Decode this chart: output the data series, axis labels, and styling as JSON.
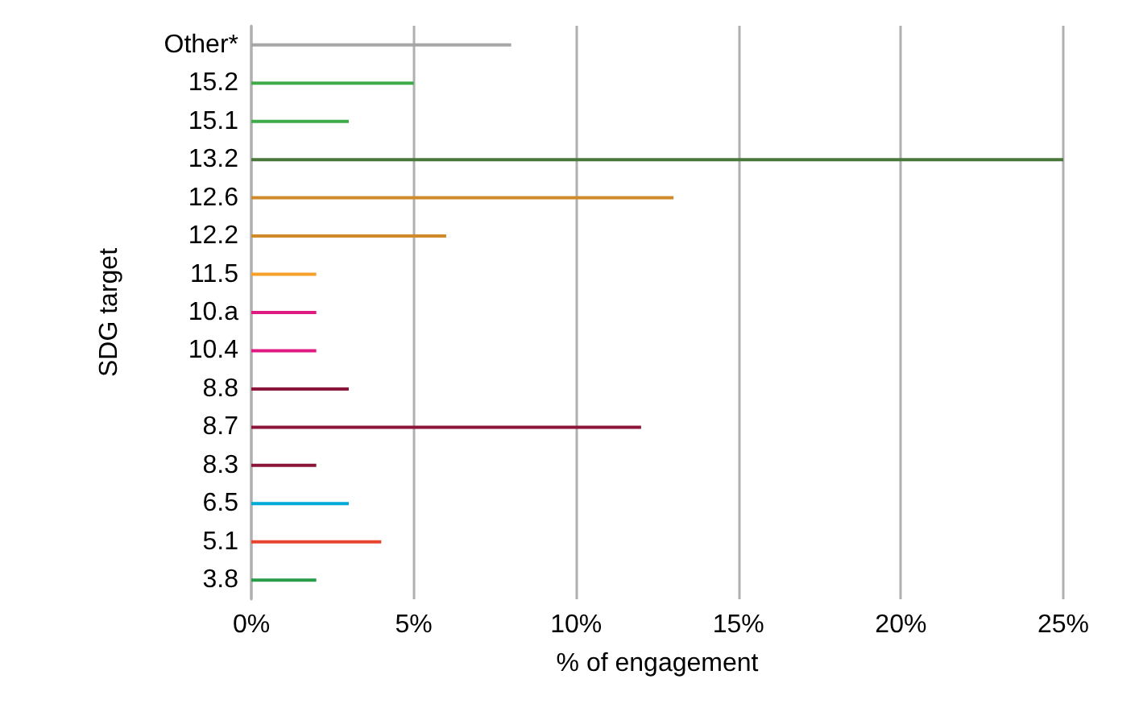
{
  "chart_data": {
    "type": "bar",
    "orientation": "horizontal",
    "xlabel": "% of engagement",
    "ylabel": "SDG target",
    "categories": [
      "Other*",
      "15.2",
      "15.1",
      "13.2",
      "12.6",
      "12.2",
      "11.5",
      "10.a",
      "10.4",
      "8.8",
      "8.7",
      "8.3",
      "6.5",
      "5.1",
      "3.8"
    ],
    "values": [
      8,
      5,
      3,
      25,
      13,
      6,
      2,
      2,
      2,
      3,
      12,
      2,
      3,
      4,
      2
    ],
    "colors": [
      "#a6a6a6",
      "#3eaa4a",
      "#3eaa4a",
      "#48773c",
      "#d08a2a",
      "#d08a2a",
      "#f7a12b",
      "#e01a83",
      "#e01a83",
      "#8b1538",
      "#8b1538",
      "#8b1538",
      "#00a9d6",
      "#e8432e",
      "#279b48"
    ],
    "xlim": [
      0,
      25
    ],
    "xticks": [
      {
        "value": 0,
        "label": "0%"
      },
      {
        "value": 5,
        "label": "5%"
      },
      {
        "value": 10,
        "label": "10%"
      },
      {
        "value": 15,
        "label": "15%"
      },
      {
        "value": 20,
        "label": "20%"
      },
      {
        "value": 25,
        "label": "25%"
      }
    ],
    "grid": "x"
  }
}
